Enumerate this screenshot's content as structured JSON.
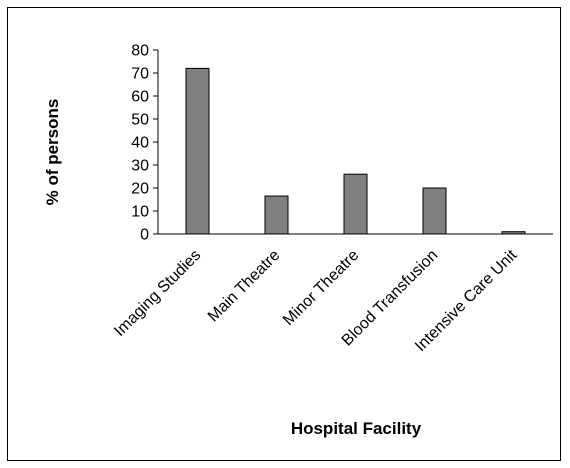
{
  "chart_data": {
    "type": "bar",
    "title": "",
    "xlabel": "Hospital Facility",
    "ylabel": "% of persons",
    "categories": [
      "Imaging Studies",
      "Main Theatre",
      "Minor Theatre",
      "Blood Transfusion",
      "Intensive Care Unit"
    ],
    "values": [
      72,
      16.5,
      26,
      20,
      1
    ],
    "ylim": [
      0,
      80
    ],
    "yticks": [
      0,
      10,
      20,
      30,
      40,
      50,
      60,
      70,
      80
    ],
    "grid": false,
    "legend": "none",
    "colors": {
      "bar_fill": "#808080",
      "bar_stroke": "#000000",
      "axis": "#000000",
      "background": "#ffffff"
    }
  }
}
